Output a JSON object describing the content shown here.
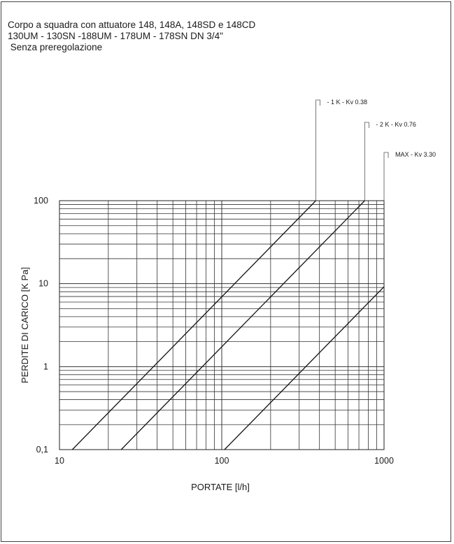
{
  "header": {
    "line1": "Corpo a squadra con attuatore 148, 148A, 148SD e 148CD",
    "line2": "130UM - 130SN -188UM - 178UM - 178SN  DN 3/4\"",
    "line3": " Senza preregolazione"
  },
  "chart_data": {
    "type": "line",
    "xscale": "log",
    "yscale": "log",
    "xlabel": "PORTATE  [l/h]",
    "ylabel": "PERDITE DI CARICO  [K Pa]",
    "xlim": [
      10,
      1000
    ],
    "ylim": [
      0.1,
      100
    ],
    "grid": true,
    "x_ticks": [
      "10",
      "100",
      "1000"
    ],
    "y_ticks": [
      "0,1",
      "1",
      "10",
      "100"
    ],
    "series": [
      {
        "name": "- 1 K  - Kv 0.38",
        "kv": 0.38,
        "x": [
          12,
          380
        ],
        "y": [
          0.1,
          100
        ]
      },
      {
        "name": "- 2 K  - Kv 0.76",
        "kv": 0.76,
        "x": [
          24,
          760
        ],
        "y": [
          0.1,
          100
        ]
      },
      {
        "name": "MAX - Kv 3.30",
        "kv": 3.3,
        "x": [
          104,
          1000
        ],
        "y": [
          0.1,
          9.18
        ]
      }
    ]
  }
}
